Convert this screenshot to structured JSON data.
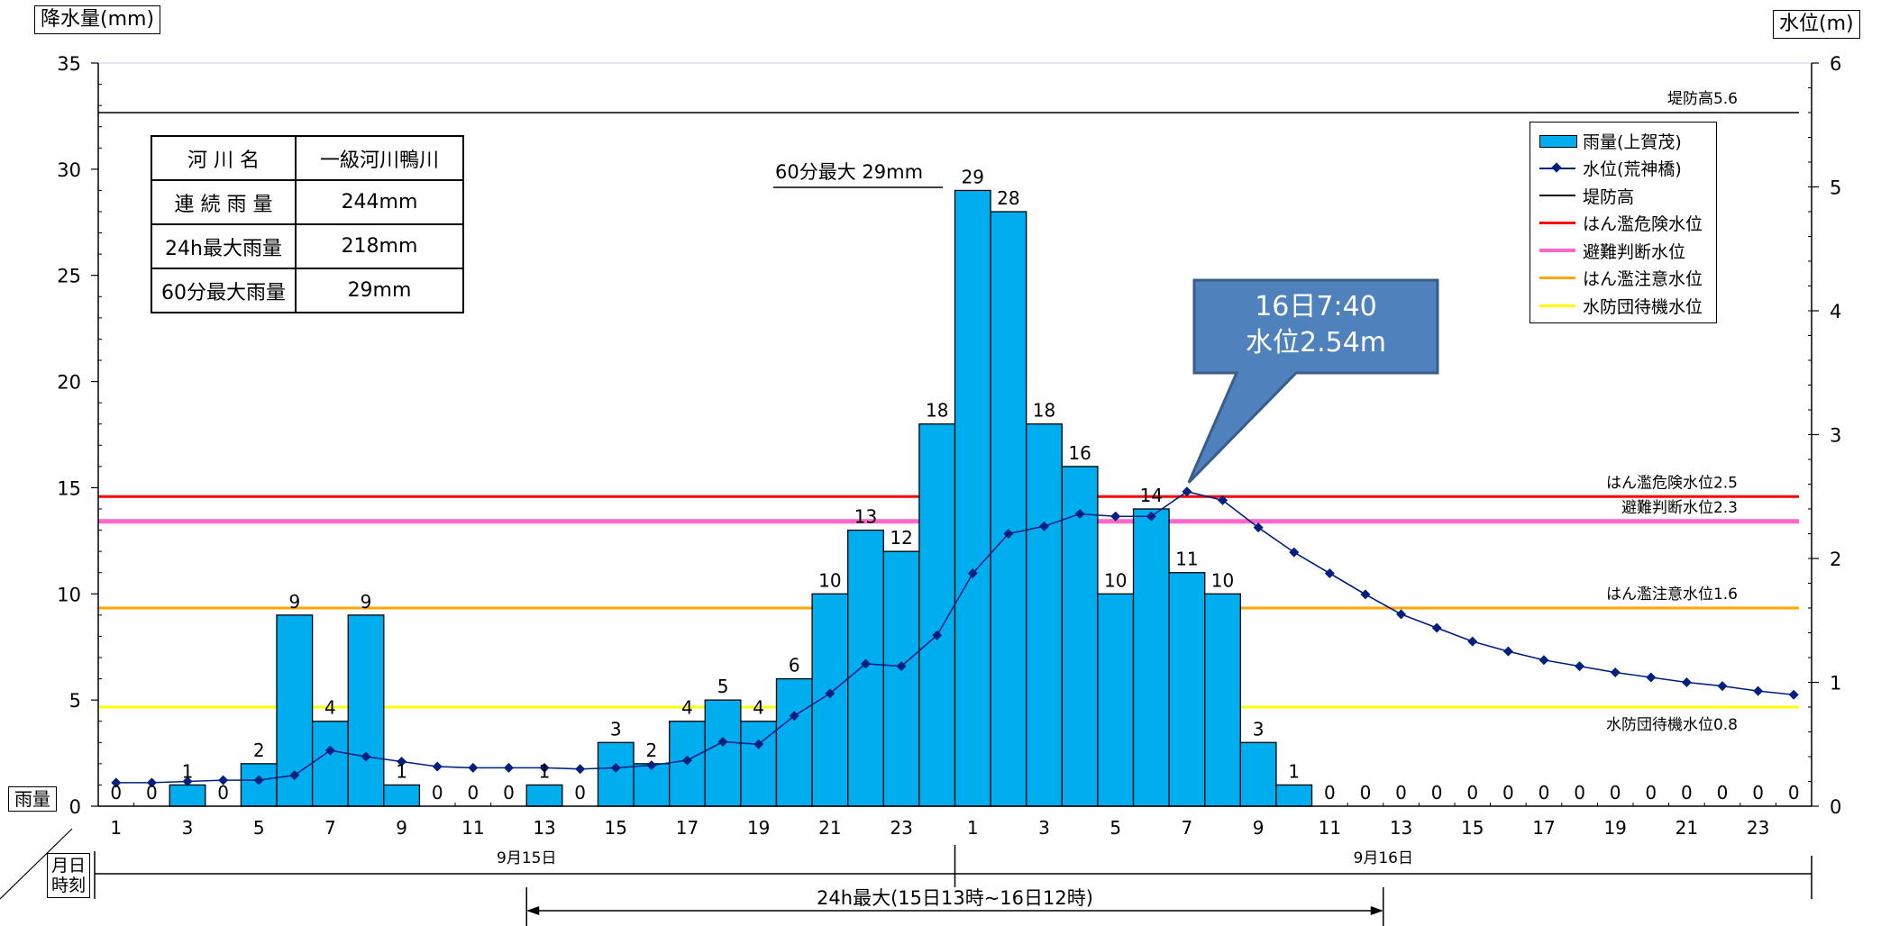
{
  "y_left_label": "降水量(mm)",
  "y_right_label": "水位(m)",
  "rain_axis_box": "雨量",
  "date_axis_box": [
    "月日",
    "時刻"
  ],
  "dates": [
    "9月15日",
    "9月16日"
  ],
  "max24_range_label": "24h最大(15日13時~16日12時)",
  "max60_label": "60分最大 29mm",
  "callout": {
    "line1": "16日7:40",
    "line2": "水位2.54m"
  },
  "info_table": {
    "rows": [
      {
        "key": "河 川 名",
        "value": "一級河川鴨川"
      },
      {
        "key": "連 続 雨 量",
        "value": "244mm"
      },
      {
        "key": "24h最大雨量",
        "value": "218mm"
      },
      {
        "key": "60分最大雨量",
        "value": "29mm"
      }
    ]
  },
  "legend": [
    {
      "label": "雨量(上賀茂)",
      "type": "bar",
      "color": "#00AEEF"
    },
    {
      "label": "水位(荒神橋)",
      "type": "line-marker",
      "color": "#002080"
    },
    {
      "label": "堤防高",
      "type": "line",
      "color": "#000000"
    },
    {
      "label": "はん濫危険水位",
      "type": "line",
      "color": "#FF0000"
    },
    {
      "label": "避難判断水位",
      "type": "line",
      "color": "#FF66CC"
    },
    {
      "label": "はん濫注意水位",
      "type": "line",
      "color": "#FFA500"
    },
    {
      "label": "水防団待機水位",
      "type": "line",
      "color": "#FFFF00"
    }
  ],
  "chart_data": {
    "type": "bar",
    "x_tick_labels": [
      "1",
      "3",
      "5",
      "7",
      "9",
      "11",
      "13",
      "15",
      "17",
      "19",
      "21",
      "23",
      "1",
      "3",
      "5",
      "7",
      "9",
      "11",
      "13",
      "15",
      "17",
      "19",
      "21",
      "23"
    ],
    "rainfall_mm": [
      0,
      0,
      1,
      0,
      2,
      9,
      4,
      9,
      1,
      0,
      0,
      0,
      1,
      0,
      3,
      2,
      4,
      5,
      4,
      6,
      10,
      13,
      12,
      18,
      29,
      28,
      18,
      16,
      10,
      14,
      11,
      10,
      3,
      1,
      0,
      0,
      0,
      0,
      0,
      0,
      0,
      0,
      0,
      0,
      0,
      0,
      0,
      0
    ],
    "rain_series_name": "雨量(上賀茂)",
    "water_level_m": [
      0.19,
      0.19,
      0.2,
      0.21,
      0.21,
      0.25,
      0.45,
      0.4,
      0.36,
      0.32,
      0.31,
      0.31,
      0.31,
      0.3,
      0.31,
      0.33,
      0.37,
      0.52,
      0.5,
      0.73,
      0.91,
      1.15,
      1.13,
      1.38,
      1.88,
      2.2,
      2.26,
      2.36,
      2.34,
      2.34,
      2.54,
      2.47,
      2.25,
      2.05,
      1.88,
      1.71,
      1.55,
      1.44,
      1.33,
      1.25,
      1.18,
      1.13,
      1.08,
      1.04,
      1.0,
      0.97,
      0.93,
      0.9
    ],
    "level_series_name": "水位(荒神橋)",
    "y_left_ticks": [
      0,
      5,
      10,
      15,
      20,
      25,
      30,
      35
    ],
    "y_left_lim": [
      0,
      35
    ],
    "y_right_ticks": [
      0,
      1,
      2,
      3,
      4,
      5,
      6
    ],
    "y_right_lim": [
      0,
      6
    ],
    "reference_lines": [
      {
        "name": "堤防高",
        "label": "堤防高5.6",
        "value": 5.6,
        "color": "#000000"
      },
      {
        "name": "はん濫危険水位",
        "label": "はん濫危険水位2.5",
        "value": 2.5,
        "color": "#FF0000"
      },
      {
        "name": "避難判断水位",
        "label": "避難判断水位2.3",
        "value": 2.3,
        "color": "#FF66CC"
      },
      {
        "name": "はん濫注意水位",
        "label": "はん濫注意水位1.6",
        "value": 1.6,
        "color": "#FFA500"
      },
      {
        "name": "水防団待機水位",
        "label": "水防団待機水位0.8",
        "value": 0.8,
        "color": "#FFFF00"
      }
    ],
    "bar_color": "#00AEEF",
    "line_color": "#002080"
  }
}
